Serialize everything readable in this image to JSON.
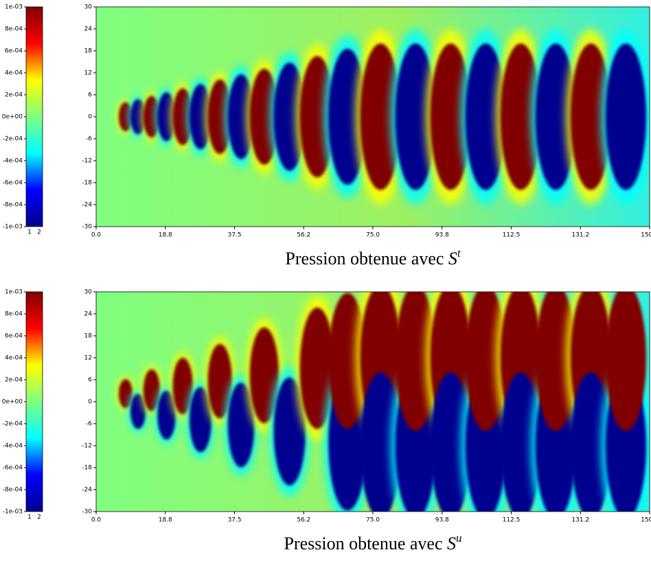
{
  "chart_data": [
    {
      "type": "heatmap",
      "caption": "Pression obtenue avec",
      "caption_symbol": "S",
      "caption_superscript": "t",
      "pattern": "centered",
      "xlim": [
        0,
        150
      ],
      "xticks": [
        {
          "value": 0,
          "label": "0.0"
        },
        {
          "value": 18.75,
          "label": "18.8"
        },
        37.5,
        {
          "value": 56.25,
          "label": "56.2"
        },
        {
          "value": 75,
          "label": "75.0"
        },
        {
          "value": 93.75,
          "label": "93.8"
        },
        112.5,
        {
          "value": 131.25,
          "label": "131.2"
        },
        {
          "value": 150,
          "label": "150.0"
        }
      ],
      "ylim": [
        -30,
        30
      ],
      "yticks": [
        -30,
        -24,
        -18,
        -12,
        -6,
        0,
        6,
        12,
        18,
        24,
        30
      ],
      "clim": [
        -0.001,
        0.001
      ],
      "cticks": [
        {
          "value": 0.001,
          "label": "1e-03"
        },
        {
          "value": 0.0008,
          "label": "8e-04"
        },
        {
          "value": 0.0006,
          "label": "6e-04"
        },
        {
          "value": 0.0004,
          "label": "4e-04"
        },
        {
          "value": 0.0002,
          "label": "2e-04"
        },
        {
          "value": 0,
          "label": "0e+00"
        },
        {
          "value": -0.0002,
          "label": "-2e-04"
        },
        {
          "value": -0.0004,
          "label": "-4e-04"
        },
        {
          "value": -0.0006,
          "label": "-6e-04"
        },
        {
          "value": -0.0008,
          "label": "-8e-04"
        },
        {
          "value": -0.001,
          "label": "-1e-03"
        }
      ],
      "cbar_xticks": [
        1,
        2
      ],
      "colormap": [
        "#00008f",
        "#0000ff",
        "#00ffff",
        "#80ff80",
        "#ffff00",
        "#ff0000",
        "#800000"
      ]
    },
    {
      "type": "heatmap",
      "caption": "Pression obtenue avec",
      "caption_symbol": "S",
      "caption_superscript": "u",
      "pattern": "split",
      "xlim": [
        0,
        150
      ],
      "xticks": [
        {
          "value": 0,
          "label": "0.0"
        },
        {
          "value": 18.75,
          "label": "18.8"
        },
        37.5,
        {
          "value": 56.25,
          "label": "56.2"
        },
        {
          "value": 75,
          "label": "75.0"
        },
        {
          "value": 93.75,
          "label": "93.8"
        },
        112.5,
        {
          "value": 131.25,
          "label": "131.2"
        },
        {
          "value": 150,
          "label": "150.0"
        }
      ],
      "ylim": [
        -30,
        30
      ],
      "yticks": [
        -30,
        -24,
        -18,
        -12,
        -6,
        0,
        6,
        12,
        18,
        24,
        30
      ],
      "clim": [
        -0.001,
        0.001
      ],
      "cticks": [
        {
          "value": 0.001,
          "label": "1e-03"
        },
        {
          "value": 0.0008,
          "label": "8e-04"
        },
        {
          "value": 0.0006,
          "label": "6e-04"
        },
        {
          "value": 0.0004,
          "label": "4e-04"
        },
        {
          "value": 0.0002,
          "label": "2e-04"
        },
        {
          "value": 0,
          "label": "0e+00"
        },
        {
          "value": -0.0002,
          "label": "-2e-04"
        },
        {
          "value": -0.0004,
          "label": "-4e-04"
        },
        {
          "value": -0.0006,
          "label": "-6e-04"
        },
        {
          "value": -0.0008,
          "label": "-8e-04"
        },
        {
          "value": -0.001,
          "label": "-1e-03"
        }
      ],
      "cbar_xticks": [
        1,
        2
      ],
      "colormap": [
        "#00008f",
        "#0000ff",
        "#00ffff",
        "#80ff80",
        "#ffff00",
        "#ff0000",
        "#800000"
      ]
    }
  ]
}
